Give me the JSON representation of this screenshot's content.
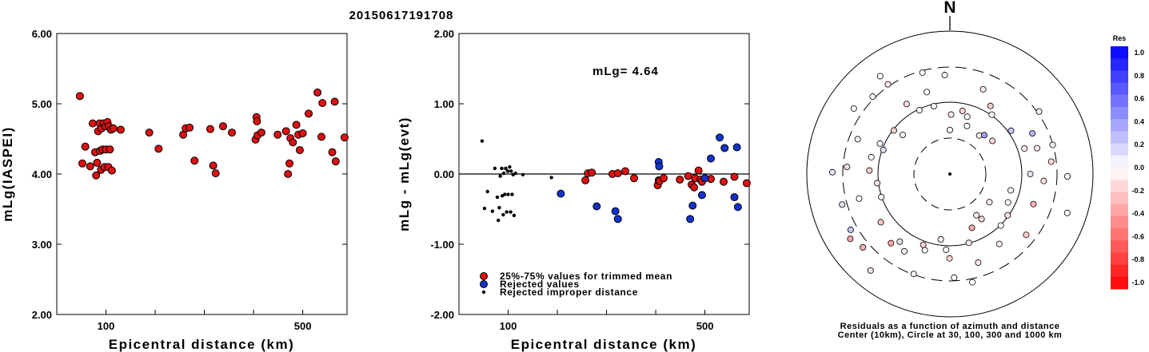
{
  "title": "20150617191708",
  "chart_data": [
    {
      "type": "scatter",
      "ylabel": "mLg(IASPEI)",
      "xlabel": "Epicentral distance (km)",
      "xlim": [
        0,
        590
      ],
      "ylim": [
        2.0,
        6.0
      ],
      "xticks": [
        {
          "v": 100,
          "label": "100"
        },
        {
          "v": 500,
          "label": "500"
        }
      ],
      "yticks": [
        {
          "v": 2,
          "label": "2.00"
        },
        {
          "v": 3,
          "label": "3.00"
        },
        {
          "v": 4,
          "label": "4.00"
        },
        {
          "v": 5,
          "label": "5.00"
        },
        {
          "v": 6,
          "label": "6.00"
        }
      ],
      "points": [
        [
          47,
          5.11
        ],
        [
          52,
          4.15
        ],
        [
          58,
          4.39
        ],
        [
          68,
          4.11
        ],
        [
          73,
          4.72
        ],
        [
          78,
          4.31
        ],
        [
          80,
          3.98
        ],
        [
          82,
          4.16
        ],
        [
          84,
          4.61
        ],
        [
          87,
          4.72
        ],
        [
          88,
          4.33
        ],
        [
          90,
          4.06
        ],
        [
          91,
          4.65
        ],
        [
          93,
          4.35
        ],
        [
          95,
          4.72
        ],
        [
          97,
          4.1
        ],
        [
          99,
          4.68
        ],
        [
          100,
          4.35
        ],
        [
          103,
          4.74
        ],
        [
          105,
          4.1
        ],
        [
          106,
          4.68
        ],
        [
          108,
          4.35
        ],
        [
          110,
          4.63
        ],
        [
          112,
          4.05
        ],
        [
          115,
          4.65
        ],
        [
          130,
          4.63
        ],
        [
          188,
          4.59
        ],
        [
          207,
          4.36
        ],
        [
          257,
          4.56
        ],
        [
          262,
          4.65
        ],
        [
          270,
          4.66
        ],
        [
          280,
          4.19
        ],
        [
          312,
          4.64
        ],
        [
          318,
          4.12
        ],
        [
          323,
          4.01
        ],
        [
          338,
          4.68
        ],
        [
          356,
          4.59
        ],
        [
          404,
          4.49
        ],
        [
          406,
          4.81
        ],
        [
          407,
          4.75
        ],
        [
          408,
          4.55
        ],
        [
          416,
          4.59
        ],
        [
          449,
          4.56
        ],
        [
          466,
          4.61
        ],
        [
          470,
          4.0
        ],
        [
          473,
          4.15
        ],
        [
          475,
          4.51
        ],
        [
          480,
          4.45
        ],
        [
          487,
          4.7
        ],
        [
          491,
          4.56
        ],
        [
          494,
          4.34
        ],
        [
          500,
          4.58
        ],
        [
          512,
          4.86
        ],
        [
          530,
          5.16
        ],
        [
          538,
          4.53
        ],
        [
          540,
          5.01
        ],
        [
          560,
          4.31
        ],
        [
          565,
          5.03
        ],
        [
          567,
          4.18
        ],
        [
          585,
          4.52
        ],
        [
          592,
          4.7
        ]
      ]
    },
    {
      "type": "scatter",
      "ylabel": "mLg - mLg(evt)",
      "xlabel": "Epicentral distance (km)",
      "xlim": [
        0,
        590
      ],
      "ylim": [
        -2.0,
        2.0
      ],
      "xticks": [
        {
          "v": 100,
          "label": "100"
        },
        {
          "v": 500,
          "label": "500"
        }
      ],
      "yticks": [
        {
          "v": -2,
          "label": "-2.00"
        },
        {
          "v": -1,
          "label": "-1.00"
        },
        {
          "v": 0,
          "label": "0.00"
        },
        {
          "v": 1,
          "label": "1.00"
        },
        {
          "v": 2,
          "label": "2.00"
        }
      ],
      "annotation": "mLg= 4.64",
      "series": [
        {
          "name": "25%-75% values for trimmed mean",
          "color": "#dd1111",
          "size": "large",
          "points": [
            [
              257,
              -0.09
            ],
            [
              262,
              0.01
            ],
            [
              270,
              0.02
            ],
            [
              312,
              0.0
            ],
            [
              323,
              0.01
            ],
            [
              338,
              0.04
            ],
            [
              356,
              -0.06
            ],
            [
              404,
              -0.16
            ],
            [
              406,
              -0.09
            ],
            [
              408,
              -0.1
            ],
            [
              416,
              -0.06
            ],
            [
              449,
              -0.08
            ],
            [
              466,
              -0.03
            ],
            [
              473,
              -0.15
            ],
            [
              478,
              -0.19
            ],
            [
              480,
              -0.06
            ],
            [
              487,
              0.05
            ],
            [
              491,
              -0.08
            ],
            [
              494,
              -0.11
            ],
            [
              512,
              -0.07
            ],
            [
              538,
              -0.11
            ],
            [
              560,
              -0.04
            ],
            [
              585,
              -0.13
            ]
          ]
        },
        {
          "name": "Rejected values",
          "color": "#1133cc",
          "size": "large",
          "points": [
            [
              207,
              -0.28
            ],
            [
              280,
              -0.46
            ],
            [
              318,
              -0.53
            ],
            [
              323,
              -0.64
            ],
            [
              406,
              0.17
            ],
            [
              407,
              0.11
            ],
            [
              470,
              -0.64
            ],
            [
              475,
              -0.45
            ],
            [
              494,
              -0.3
            ],
            [
              500,
              -0.06
            ],
            [
              512,
              0.22
            ],
            [
              530,
              0.52
            ],
            [
              540,
              0.37
            ],
            [
              560,
              -0.33
            ],
            [
              565,
              0.38
            ],
            [
              567,
              -0.47
            ],
            [
              592,
              0.06
            ]
          ]
        },
        {
          "name": "Rejected improper distance",
          "color": "#000000",
          "size": "small",
          "points": [
            [
              47,
              0.47
            ],
            [
              52,
              -0.49
            ],
            [
              58,
              -0.25
            ],
            [
              68,
              -0.53
            ],
            [
              73,
              0.08
            ],
            [
              78,
              -0.33
            ],
            [
              80,
              -0.66
            ],
            [
              82,
              -0.48
            ],
            [
              84,
              -0.03
            ],
            [
              87,
              0.08
            ],
            [
              88,
              -0.31
            ],
            [
              90,
              -0.58
            ],
            [
              91,
              0.01
            ],
            [
              93,
              -0.29
            ],
            [
              95,
              0.08
            ],
            [
              97,
              -0.54
            ],
            [
              99,
              0.04
            ],
            [
              100,
              -0.29
            ],
            [
              103,
              0.1
            ],
            [
              105,
              -0.54
            ],
            [
              106,
              0.04
            ],
            [
              108,
              -0.29
            ],
            [
              110,
              -0.01
            ],
            [
              112,
              -0.59
            ],
            [
              115,
              0.01
            ],
            [
              130,
              -0.01
            ],
            [
              188,
              -0.05
            ]
          ]
        }
      ]
    },
    {
      "type": "polar-scatter",
      "north_label": "N",
      "caption_line1": "Residuals as a function of azimuth and distance",
      "caption_line2": "Center (10km), Circle at 30, 100, 300 and 1000 km",
      "colorbar_title": "Res",
      "colorbar_ticks": [
        "1.0",
        "0.8",
        "0.6",
        "0.4",
        "0.2",
        "0.0",
        "-0.2",
        "-0.4",
        "-0.6",
        "-0.8",
        "-1.0"
      ],
      "points": [
        [
          0.56,
          -0.05
        ],
        [
          0.52,
          -0.18
        ],
        [
          0.57,
          -0.09
        ],
        [
          0.6,
          0.02
        ],
        [
          0.7,
          -0.1
        ],
        [
          0.54,
          0.04
        ],
        [
          0.53,
          -0.06
        ],
        [
          0.58,
          -0.2
        ],
        [
          0.62,
          -0.04
        ],
        [
          0.55,
          -0.15
        ],
        [
          0.66,
          0.38
        ],
        [
          0.88,
          0.06
        ],
        [
          0.88,
          0.3
        ],
        [
          0.88,
          0.22
        ],
        [
          0.82,
          0.05
        ],
        [
          0.82,
          -0.1
        ],
        [
          0.86,
          -0.07
        ],
        [
          0.86,
          0.0
        ],
        [
          0.87,
          -0.15
        ],
        [
          0.82,
          0.12
        ],
        [
          0.8,
          -0.05
        ],
        [
          0.76,
          -0.12
        ],
        [
          0.85,
          -0.3
        ],
        [
          0.76,
          -0.02
        ],
        [
          0.95,
          -0.04
        ],
        [
          0.88,
          -0.2
        ],
        [
          0.53,
          -0.07
        ],
        [
          0.52,
          -0.12
        ],
        [
          0.73,
          -0.08
        ],
        [
          0.74,
          0.0
        ],
        [
          0.7,
          -0.15
        ],
        [
          0.47,
          -0.3
        ],
        [
          0.47,
          -0.1
        ],
        [
          0.84,
          -0.07
        ],
        [
          0.85,
          0.0
        ],
        [
          0.84,
          -0.09
        ],
        [
          0.83,
          0.0
        ],
        [
          0.76,
          -0.04
        ],
        [
          0.72,
          -0.17
        ],
        [
          0.82,
          -0.02
        ],
        [
          0.84,
          -0.06
        ],
        [
          0.86,
          -0.06
        ],
        [
          0.86,
          -0.06
        ],
        [
          0.89,
          -0.18
        ],
        [
          0.96,
          -0.11
        ],
        [
          0.82,
          -0.35
        ],
        [
          0.92,
          0.12
        ],
        [
          0.87,
          -0.35
        ],
        [
          0.97,
          -0.3
        ],
        [
          0.86,
          -0.22
        ],
        [
          0.92,
          -0.05
        ],
        [
          0.92,
          0.22
        ],
        [
          0.9,
          0.0
        ],
        [
          0.86,
          -0.11
        ],
        [
          0.86,
          0.11
        ],
        [
          0.93,
          -0.14
        ],
        [
          0.88,
          -0.2
        ],
        [
          0.86,
          0.1
        ],
        [
          0.84,
          -0.05
        ],
        [
          0.82,
          -0.02
        ],
        [
          0.9,
          0.12
        ],
        [
          0.94,
          0.0
        ],
        [
          0.73,
          0.0
        ],
        [
          0.72,
          -0.05
        ],
        [
          0.84,
          0.0
        ],
        [
          0.64,
          -0.19
        ],
        [
          0.9,
          -0.12
        ],
        [
          0.88,
          0.0
        ],
        [
          0.93,
          -0.1
        ],
        [
          0.87,
          0.0
        ],
        [
          0.9,
          0.0
        ],
        [
          0.85,
          0.0
        ],
        [
          0.95,
          0.0
        ],
        [
          0.82,
          0.0
        ]
      ]
    }
  ]
}
